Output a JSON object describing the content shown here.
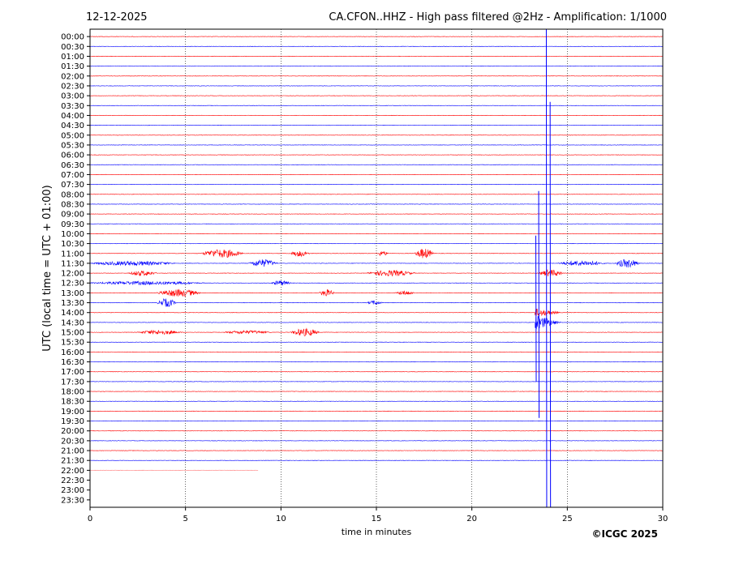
{
  "header": {
    "date": "12-12-2025",
    "station_title": "CA.CFON..HHZ - High pass filtered @2Hz - Amplification: 1/1000"
  },
  "footer": {
    "credit": "©ICGC 2025"
  },
  "chart_data": {
    "type": "line",
    "title": "CA.CFON..HHZ - High pass filtered @2Hz - Amplification: 1/1000",
    "date": "12-12-2025",
    "xlabel": "time in minutes",
    "ylabel": "UTC (local time = UTC + 01:00)",
    "xlim": [
      0,
      30
    ],
    "x_ticks": [
      "0",
      "5",
      "10",
      "15",
      "20",
      "25",
      "30"
    ],
    "vertical_gridlines_at": [
      5,
      10,
      15,
      20,
      25
    ],
    "y_ticks": [
      "00:00",
      "00:30",
      "01:00",
      "01:30",
      "02:00",
      "02:30",
      "03:00",
      "03:30",
      "04:00",
      "04:30",
      "05:00",
      "05:30",
      "06:00",
      "06:30",
      "07:00",
      "07:30",
      "08:00",
      "08:30",
      "09:00",
      "09:30",
      "10:00",
      "10:30",
      "11:00",
      "11:30",
      "12:00",
      "12:30",
      "13:00",
      "13:30",
      "14:00",
      "14:30",
      "15:00",
      "15:30",
      "16:00",
      "16:30",
      "17:00",
      "17:30",
      "18:00",
      "18:30",
      "19:00",
      "19:30",
      "20:00",
      "20:30",
      "21:00",
      "21:30",
      "22:00",
      "22:30",
      "23:00",
      "23:30"
    ],
    "trace_colors": [
      "#ff0000",
      "#0000ff"
    ],
    "last_trace_end_minute": 8.8,
    "noise_bursts": [
      {
        "row": 22,
        "start": 5.8,
        "end": 8.0,
        "amp": 1.0
      },
      {
        "row": 22,
        "start": 10.5,
        "end": 11.5,
        "amp": 0.7
      },
      {
        "row": 22,
        "start": 15.0,
        "end": 15.6,
        "amp": 0.6
      },
      {
        "row": 22,
        "start": 17.0,
        "end": 18.0,
        "amp": 1.2
      },
      {
        "row": 23,
        "start": 0.0,
        "end": 4.5,
        "amp": 0.5
      },
      {
        "row": 23,
        "start": 8.3,
        "end": 9.8,
        "amp": 0.9
      },
      {
        "row": 23,
        "start": 24.5,
        "end": 27.0,
        "amp": 0.6
      },
      {
        "row": 23,
        "start": 27.5,
        "end": 28.8,
        "amp": 1.0
      },
      {
        "row": 24,
        "start": 2.0,
        "end": 3.5,
        "amp": 0.6
      },
      {
        "row": 24,
        "start": 14.5,
        "end": 17.0,
        "amp": 0.7
      },
      {
        "row": 24,
        "start": 23.5,
        "end": 24.8,
        "amp": 0.8
      },
      {
        "row": 25,
        "start": 0.0,
        "end": 6.0,
        "amp": 0.4
      },
      {
        "row": 25,
        "start": 9.5,
        "end": 10.5,
        "amp": 0.6
      },
      {
        "row": 26,
        "start": 3.5,
        "end": 5.8,
        "amp": 0.9
      },
      {
        "row": 26,
        "start": 12.0,
        "end": 12.8,
        "amp": 0.8
      },
      {
        "row": 26,
        "start": 16.0,
        "end": 17.0,
        "amp": 0.5
      },
      {
        "row": 27,
        "start": 3.5,
        "end": 4.5,
        "amp": 1.0
      },
      {
        "row": 27,
        "start": 14.5,
        "end": 15.3,
        "amp": 0.5
      },
      {
        "row": 30,
        "start": 2.5,
        "end": 4.8,
        "amp": 0.5
      },
      {
        "row": 30,
        "start": 7.0,
        "end": 9.5,
        "amp": 0.4
      },
      {
        "row": 30,
        "start": 10.5,
        "end": 12.0,
        "amp": 0.9
      }
    ],
    "earthquake": {
      "start_minute": 23.3,
      "first_arrival_row": 28,
      "peak_row": 29,
      "coda_rows": [
        28,
        29
      ],
      "spike_minutes": [
        23.35,
        23.5,
        23.9,
        24.1
      ]
    }
  }
}
